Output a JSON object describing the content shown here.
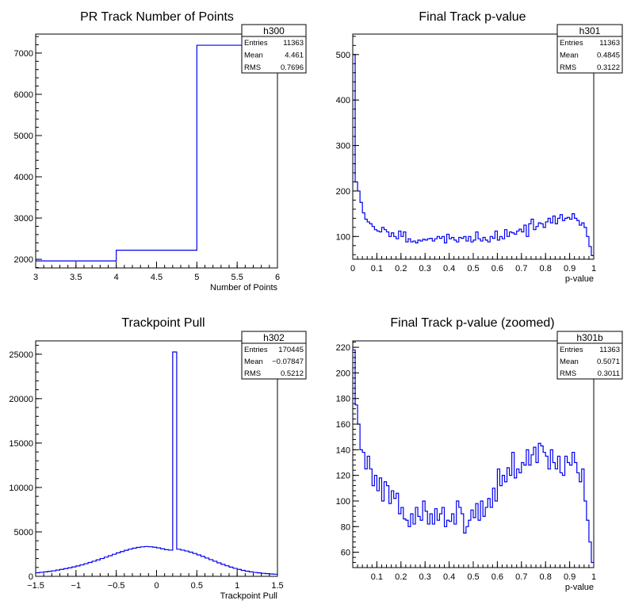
{
  "chart_data": [
    {
      "id": "h300",
      "type": "histogram",
      "title": "PR Track Number of Points",
      "xlabel": "Number of Points",
      "ylabel": "",
      "xlim": [
        3,
        6
      ],
      "ylim": [
        1790,
        7460
      ],
      "xticks": [
        "3",
        "3.5",
        "4",
        "4.5",
        "5",
        "5.5",
        "6"
      ],
      "yticks": [
        "2000",
        "3000",
        "4000",
        "5000",
        "6000",
        "7000"
      ],
      "bins": [
        {
          "x0": 3,
          "x1": 4,
          "y": 1960
        },
        {
          "x0": 4,
          "x1": 5,
          "y": 2220
        },
        {
          "x0": 5,
          "x1": 6,
          "y": 7190
        }
      ],
      "stats": {
        "name": "h300",
        "rows": [
          [
            "Entries",
            "11363"
          ],
          [
            "Mean",
            "4.461"
          ],
          [
            "RMS",
            "0.7696"
          ]
        ]
      }
    },
    {
      "id": "h301",
      "type": "histogram",
      "title": "Final Track p-value",
      "xlabel": "p-value",
      "ylabel": "",
      "xlim": [
        0,
        1
      ],
      "ylim": [
        50,
        545
      ],
      "xticks": [
        "0",
        "0.1",
        "0.2",
        "0.3",
        "0.4",
        "0.5",
        "0.6",
        "0.7",
        "0.8",
        "0.9",
        "1"
      ],
      "yticks": [
        "100",
        "200",
        "300",
        "400",
        "500"
      ],
      "values": [
        500,
        220,
        200,
        175,
        152,
        138,
        132,
        128,
        122,
        115,
        112,
        110,
        120,
        115,
        110,
        100,
        108,
        100,
        95,
        112,
        100,
        110,
        88,
        95,
        88,
        90,
        86,
        92,
        90,
        94,
        92,
        95,
        96,
        90,
        95,
        100,
        96,
        100,
        86,
        105,
        95,
        98,
        92,
        88,
        98,
        96,
        100,
        90,
        100,
        88,
        92,
        110,
        95,
        90,
        98,
        92,
        88,
        100,
        96,
        112,
        92,
        100,
        95,
        115,
        100,
        110,
        108,
        105,
        112,
        116,
        110,
        125,
        100,
        128,
        138,
        115,
        122,
        130,
        128,
        120,
        132,
        140,
        130,
        145,
        128,
        140,
        148,
        135,
        140,
        142,
        138,
        150,
        140,
        135,
        125,
        130,
        120,
        100,
        78,
        58
      ],
      "stats": {
        "name": "h301",
        "rows": [
          [
            "Entries",
            "11363"
          ],
          [
            "Mean",
            "0.4845"
          ],
          [
            "RMS",
            "0.3122"
          ]
        ]
      }
    },
    {
      "id": "h302",
      "type": "histogram",
      "title": "Trackpoint Pull",
      "xlabel": "Trackpoint Pull",
      "ylabel": "",
      "xlim": [
        -1.5,
        1.5
      ],
      "ylim": [
        0,
        26500
      ],
      "xticks": [
        "−1.5",
        "−1",
        "−0.5",
        "0",
        "0.5",
        "1",
        "1.5"
      ],
      "yticks": [
        "0",
        "5000",
        "10000",
        "15000",
        "20000",
        "25000"
      ],
      "values": [
        400,
        450,
        500,
        560,
        620,
        700,
        780,
        870,
        960,
        1060,
        1170,
        1290,
        1420,
        1560,
        1700,
        1850,
        2000,
        2160,
        2320,
        2480,
        2640,
        2790,
        2930,
        3060,
        3170,
        3260,
        3320,
        3350,
        3330,
        3280,
        3200,
        3100,
        3000,
        2950,
        25250,
        3050,
        2950,
        2850,
        2720,
        2570,
        2410,
        2240,
        2060,
        1880,
        1700,
        1520,
        1350,
        1190,
        1040,
        900,
        780,
        670,
        580,
        500,
        440,
        390,
        340,
        300,
        270,
        240
      ],
      "stats": {
        "name": "h302",
        "rows": [
          [
            "Entries",
            "170445"
          ],
          [
            "Mean",
            "−0.07847"
          ],
          [
            "RMS",
            "0.5212"
          ]
        ]
      }
    },
    {
      "id": "h301b",
      "type": "histogram",
      "title": "Final Track p-value (zoomed)",
      "xlabel": "p-value",
      "ylabel": "",
      "xlim": [
        0,
        1
      ],
      "ylim": [
        48,
        225
      ],
      "xticks": [
        "0.1",
        "0.2",
        "0.3",
        "0.4",
        "0.5",
        "0.6",
        "0.7",
        "0.8",
        "0.9",
        "1"
      ],
      "yticks": [
        "60",
        "80",
        "100",
        "120",
        "140",
        "160",
        "180",
        "200",
        "220"
      ],
      "values": [
        218,
        175,
        160,
        140,
        138,
        125,
        135,
        125,
        112,
        120,
        108,
        118,
        100,
        115,
        112,
        98,
        108,
        102,
        106,
        90,
        95,
        86,
        85,
        80,
        90,
        82,
        95,
        88,
        85,
        100,
        92,
        82,
        90,
        82,
        94,
        85,
        90,
        95,
        80,
        85,
        84,
        90,
        82,
        100,
        95,
        90,
        75,
        80,
        85,
        93,
        87,
        98,
        85,
        100,
        88,
        95,
        102,
        95,
        110,
        100,
        125,
        112,
        120,
        115,
        126,
        120,
        138,
        118,
        125,
        122,
        130,
        128,
        140,
        128,
        136,
        142,
        130,
        145,
        143,
        138,
        135,
        125,
        140,
        130,
        125,
        135,
        122,
        120,
        135,
        130,
        128,
        138,
        130,
        122,
        115,
        125,
        100,
        85,
        68,
        52
      ],
      "stats": {
        "name": "h301b",
        "rows": [
          [
            "Entries",
            "11363"
          ],
          [
            "Mean",
            "0.5071"
          ],
          [
            "RMS",
            "0.3011"
          ]
        ]
      }
    }
  ]
}
